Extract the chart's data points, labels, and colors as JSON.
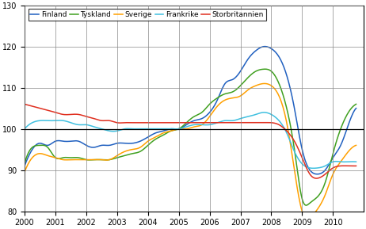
{
  "legend_labels": [
    "Finland",
    "Tyskland",
    "Sverige",
    "Frankrike",
    "Storbritannien"
  ],
  "colors": [
    "#2060C0",
    "#40A020",
    "#FFA000",
    "#40C0E0",
    "#E03020"
  ],
  "ylim": [
    80,
    130
  ],
  "yticks": [
    80,
    90,
    100,
    110,
    120,
    130
  ],
  "xlim": [
    2000.0,
    2011.0
  ],
  "xticks": [
    2000,
    2001,
    2002,
    2003,
    2004,
    2005,
    2006,
    2007,
    2008,
    2009,
    2010
  ],
  "background_color": "#FFFFFF",
  "grid_color": "#888888",
  "finland_x": [
    2000.0,
    2000.25,
    2000.5,
    2000.75,
    2001.0,
    2001.25,
    2001.5,
    2001.75,
    2002.0,
    2002.25,
    2002.5,
    2002.75,
    2003.0,
    2003.25,
    2003.5,
    2003.75,
    2004.0,
    2004.25,
    2004.5,
    2004.75,
    2005.0,
    2005.25,
    2005.5,
    2005.75,
    2006.0,
    2006.25,
    2006.5,
    2006.75,
    2007.0,
    2007.25,
    2007.5,
    2007.75,
    2008.0,
    2008.25,
    2008.5,
    2008.75,
    2009.0,
    2009.25,
    2009.5,
    2009.75,
    2010.0,
    2010.25,
    2010.5,
    2010.75
  ],
  "finland_y": [
    91.0,
    95.0,
    96.5,
    96.0,
    97.0,
    97.0,
    97.0,
    97.0,
    96.0,
    95.5,
    96.0,
    96.0,
    96.5,
    96.5,
    96.5,
    97.0,
    98.0,
    99.0,
    99.5,
    100.0,
    100.0,
    101.0,
    102.0,
    102.5,
    104.0,
    107.0,
    111.0,
    112.0,
    114.0,
    117.0,
    119.0,
    120.0,
    119.5,
    117.5,
    113.0,
    105.0,
    95.0,
    90.0,
    89.0,
    90.0,
    93.0,
    96.0,
    101.0,
    105.0
  ],
  "tyskland_x": [
    2000.0,
    2000.25,
    2000.5,
    2000.75,
    2001.0,
    2001.25,
    2001.5,
    2001.75,
    2002.0,
    2002.25,
    2002.5,
    2002.75,
    2003.0,
    2003.25,
    2003.5,
    2003.75,
    2004.0,
    2004.25,
    2004.5,
    2004.75,
    2005.0,
    2005.25,
    2005.5,
    2005.75,
    2006.0,
    2006.25,
    2006.5,
    2006.75,
    2007.0,
    2007.25,
    2007.5,
    2007.75,
    2008.0,
    2008.25,
    2008.5,
    2008.75,
    2009.0,
    2009.25,
    2009.5,
    2009.75,
    2010.0,
    2010.25,
    2010.5,
    2010.75
  ],
  "tyskland_y": [
    91.5,
    95.5,
    96.0,
    95.5,
    93.0,
    93.0,
    93.0,
    93.0,
    92.5,
    92.5,
    92.5,
    92.5,
    93.0,
    93.5,
    94.0,
    94.5,
    96.0,
    97.5,
    98.5,
    99.5,
    100.0,
    101.5,
    103.0,
    104.0,
    106.0,
    107.5,
    108.5,
    109.0,
    110.5,
    112.5,
    114.0,
    114.5,
    114.0,
    111.0,
    105.0,
    95.0,
    83.0,
    82.0,
    83.5,
    87.0,
    94.0,
    100.0,
    104.0,
    106.0
  ],
  "sverige_x": [
    2000.0,
    2000.25,
    2000.5,
    2000.75,
    2001.0,
    2001.25,
    2001.5,
    2001.75,
    2002.0,
    2002.25,
    2002.5,
    2002.75,
    2003.0,
    2003.25,
    2003.5,
    2003.75,
    2004.0,
    2004.25,
    2004.5,
    2004.75,
    2005.0,
    2005.25,
    2005.5,
    2005.75,
    2006.0,
    2006.25,
    2006.5,
    2006.75,
    2007.0,
    2007.25,
    2007.5,
    2007.75,
    2008.0,
    2008.25,
    2008.5,
    2008.75,
    2009.0,
    2009.25,
    2009.5,
    2009.75,
    2010.0,
    2010.25,
    2010.5,
    2010.75
  ],
  "sverige_y": [
    89.5,
    93.0,
    94.0,
    93.5,
    93.0,
    92.5,
    92.5,
    92.5,
    92.5,
    92.5,
    92.5,
    92.5,
    93.5,
    94.5,
    95.0,
    95.5,
    97.0,
    98.0,
    99.0,
    99.5,
    100.0,
    100.0,
    100.5,
    101.0,
    103.0,
    105.5,
    107.0,
    107.5,
    108.0,
    109.5,
    110.5,
    111.0,
    110.5,
    108.0,
    101.5,
    90.0,
    80.0,
    78.5,
    80.5,
    84.0,
    89.0,
    92.0,
    94.5,
    96.0
  ],
  "frankrike_x": [
    2000.0,
    2000.25,
    2000.5,
    2000.75,
    2001.0,
    2001.25,
    2001.5,
    2001.75,
    2002.0,
    2002.25,
    2002.5,
    2002.75,
    2003.0,
    2003.25,
    2003.5,
    2003.75,
    2004.0,
    2004.25,
    2004.5,
    2004.75,
    2005.0,
    2005.25,
    2005.5,
    2005.75,
    2006.0,
    2006.25,
    2006.5,
    2006.75,
    2007.0,
    2007.25,
    2007.5,
    2007.75,
    2008.0,
    2008.25,
    2008.5,
    2008.75,
    2009.0,
    2009.25,
    2009.5,
    2009.75,
    2010.0,
    2010.25,
    2010.5,
    2010.75
  ],
  "frankrike_y": [
    100.0,
    101.5,
    102.0,
    102.0,
    102.0,
    102.0,
    101.5,
    101.0,
    101.0,
    100.5,
    100.0,
    99.5,
    99.5,
    100.0,
    100.0,
    100.0,
    100.0,
    100.0,
    100.0,
    100.0,
    100.0,
    100.5,
    101.0,
    101.0,
    101.0,
    101.5,
    102.0,
    102.0,
    102.5,
    103.0,
    103.5,
    104.0,
    103.5,
    102.0,
    99.0,
    94.5,
    91.5,
    90.5,
    90.5,
    91.0,
    92.0,
    92.0,
    92.0,
    92.0
  ],
  "storbritannien_x": [
    2000.0,
    2000.25,
    2000.5,
    2000.75,
    2001.0,
    2001.25,
    2001.5,
    2001.75,
    2002.0,
    2002.25,
    2002.5,
    2002.75,
    2003.0,
    2003.25,
    2003.5,
    2003.75,
    2004.0,
    2004.25,
    2004.5,
    2004.75,
    2005.0,
    2005.25,
    2005.5,
    2005.75,
    2006.0,
    2006.25,
    2006.5,
    2006.75,
    2007.0,
    2007.25,
    2007.5,
    2007.75,
    2008.0,
    2008.25,
    2008.5,
    2008.75,
    2009.0,
    2009.25,
    2009.5,
    2009.75,
    2010.0,
    2010.25,
    2010.5,
    2010.75
  ],
  "storbritannien_y": [
    106.0,
    105.5,
    105.0,
    104.5,
    104.0,
    103.5,
    103.5,
    103.5,
    103.0,
    102.5,
    102.0,
    102.0,
    101.5,
    101.5,
    101.5,
    101.5,
    101.5,
    101.5,
    101.5,
    101.5,
    101.5,
    101.5,
    101.5,
    101.5,
    101.5,
    101.5,
    101.5,
    101.5,
    101.5,
    101.5,
    101.5,
    101.5,
    101.5,
    101.0,
    99.5,
    97.0,
    93.0,
    89.0,
    88.0,
    89.0,
    90.5,
    91.0,
    91.0,
    91.0
  ]
}
